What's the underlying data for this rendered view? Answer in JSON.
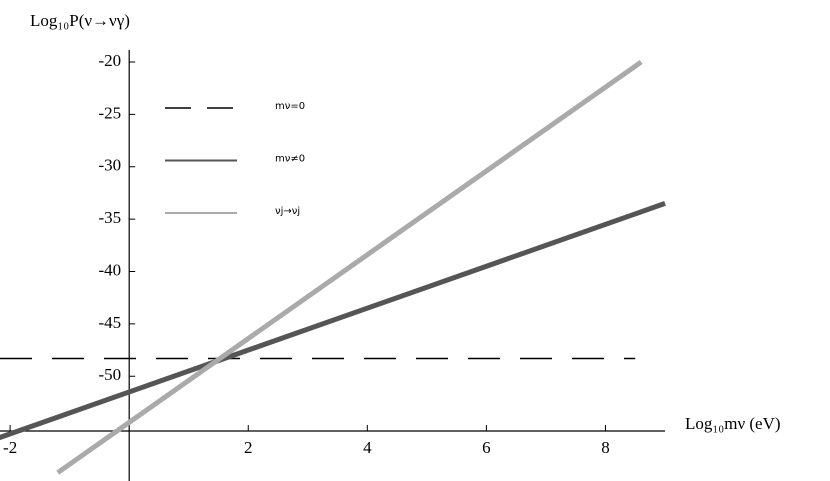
{
  "chart_data": {
    "type": "line",
    "y_label": "Log₁₀P(ν→νγ)",
    "x_label": "Log₁₀mν (eV)",
    "xlim": [
      -2.17,
      9.0
    ],
    "ylim": [
      -60,
      -20
    ],
    "xticks": [
      -2,
      2,
      4,
      6,
      8
    ],
    "yticks": [
      -20,
      -25,
      -30,
      -35,
      -40,
      -45,
      -50
    ],
    "series": [
      {
        "name": "mν=0",
        "color": "#000000",
        "dash": true,
        "x": [
          -2.17,
          8.5
        ],
        "values": [
          -48.3,
          -48.3
        ]
      },
      {
        "name": "mν≠0",
        "color": "#555555",
        "dash": false,
        "x": [
          -2.2,
          9.0
        ],
        "values": [
          -55.9,
          -33.5
        ]
      },
      {
        "name": "νj→νj",
        "color": "#aaaaaa",
        "dash": false,
        "x": [
          -1.2,
          8.6
        ],
        "values": [
          -59.2,
          -20
        ]
      }
    ]
  }
}
